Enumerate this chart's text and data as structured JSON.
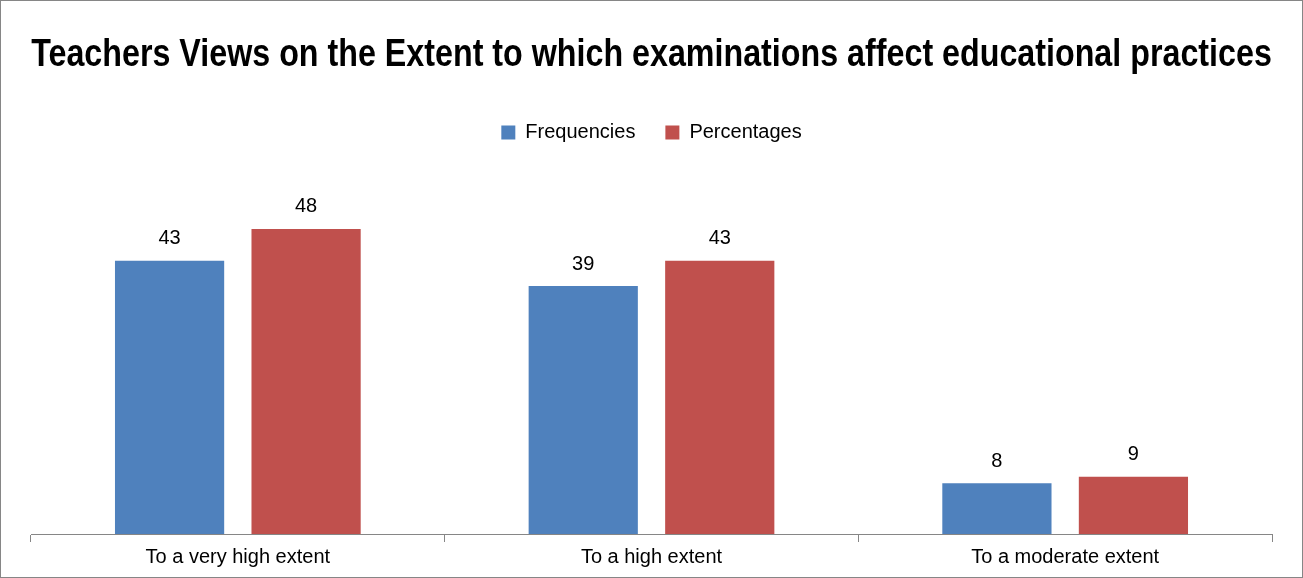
{
  "chart_data": {
    "type": "bar",
    "title": "Teachers Views on the Extent to which examinations affect educational practices",
    "categories": [
      "To a very high extent",
      "To a high extent",
      "To a moderate extent"
    ],
    "series": [
      {
        "name": "Frequencies",
        "color": "#4f81bd",
        "values": [
          43,
          39,
          8
        ]
      },
      {
        "name": "Percentages",
        "color": "#c0504d",
        "values": [
          48,
          43,
          9
        ]
      }
    ],
    "data_labels": true,
    "legend": "top",
    "grid": false
  }
}
